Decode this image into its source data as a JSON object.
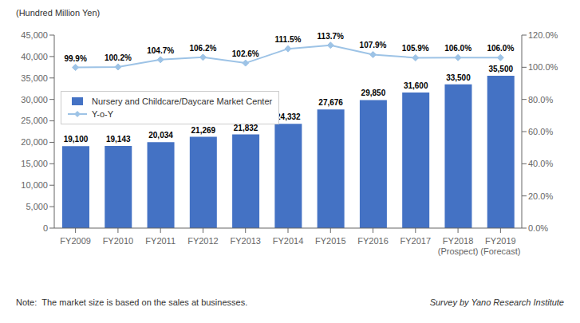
{
  "chart_data": {
    "type": "bar",
    "categories": [
      "FY2009",
      "FY2010",
      "FY2011",
      "FY2012",
      "FY2013",
      "FY2014",
      "FY2015",
      "FY2016",
      "FY2017",
      "FY2018\n(Prospect)",
      "FY2019\n(Forecast)"
    ],
    "series": [
      {
        "name": "Nursery and Childcare/Daycare Market Center",
        "type": "bar",
        "color": "#4472C4",
        "values": [
          19100,
          19143,
          20034,
          21269,
          21832,
          24332,
          27676,
          29850,
          31600,
          33500,
          35500
        ],
        "value_labels": [
          "19,100",
          "19,143",
          "20,034",
          "21,269",
          "21,832",
          "24,332",
          "27,676",
          "29,850",
          "31,600",
          "33,500",
          "35,500"
        ]
      },
      {
        "name": "Y-o-Y",
        "type": "line",
        "axis": "y2",
        "color": "#9DC3E6",
        "marker": "diamond",
        "values": [
          99.9,
          100.2,
          104.7,
          106.2,
          102.6,
          111.5,
          113.7,
          107.9,
          105.9,
          106.0,
          106.0
        ],
        "value_labels": [
          "99.9%",
          "100.2%",
          "104.7%",
          "106.2%",
          "102.6%",
          "111.5%",
          "113.7%",
          "107.9%",
          "105.9%",
          "106.0%",
          "106.0%"
        ]
      }
    ],
    "ylabel": "(Hundred Million Yen)",
    "ylim": [
      0,
      45000
    ],
    "yticks": [
      0,
      {
        "value": 5000,
        "label": "5,000"
      },
      {
        "value": 10000,
        "label": "10,000"
      },
      {
        "value": 15000,
        "label": "15,000"
      },
      {
        "value": 20000,
        "label": "20,000"
      },
      {
        "value": 25000,
        "label": "25,000"
      },
      {
        "value": 30000,
        "label": "30,000"
      },
      {
        "value": 35000,
        "label": "35,000"
      },
      {
        "value": 40000,
        "label": "40,000"
      },
      {
        "value": 45000,
        "label": "45,000"
      }
    ],
    "y2lim": [
      0.0,
      120.0
    ],
    "y2ticks": [
      {
        "value": 0.0,
        "label": "0.0%"
      },
      {
        "value": 20.0,
        "label": "20.0%"
      },
      {
        "value": 40.0,
        "label": "40.0%"
      },
      {
        "value": 60.0,
        "label": "60.0%"
      },
      {
        "value": 80.0,
        "label": "80.0%"
      },
      {
        "value": 100.0,
        "label": "100.0%"
      },
      {
        "value": 120.0,
        "label": "120.0%"
      }
    ],
    "grid": false,
    "legend": "upper left",
    "data_labels": true,
    "note": "Note:  The market size is based on the sales at businesses.",
    "source": "Survey by Yano Research Institute"
  }
}
